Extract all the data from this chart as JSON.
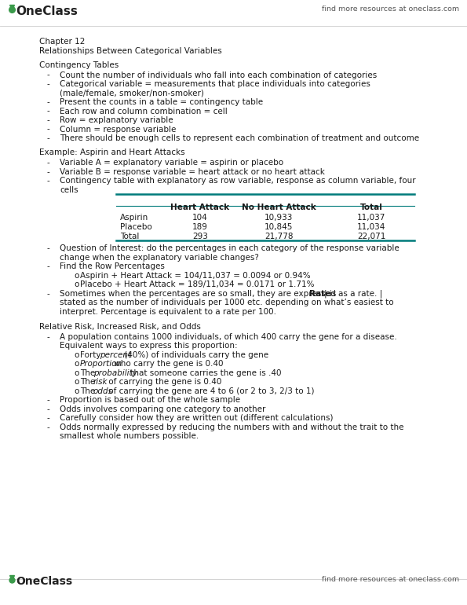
{
  "bg_color": "#ffffff",
  "logo_color": "#3a9a4a",
  "header_right": "find more resources at oneclass.com",
  "footer_right": "find more resources at oneclass.com",
  "chapter_title": "Chapter 12",
  "chapter_subtitle": "Relationships Between Categorical Variables",
  "section1_title": "Contingency Tables",
  "section1_bullets": [
    "Count the number of individuals who fall into each combination of categories",
    "Categorical variable = measurements that place individuals into categories\n(male/female, smoker/non-smoker)",
    "Present the counts in a table = contingency table",
    "Each row and column combination = cell",
    "Row = explanatory variable",
    "Column = response variable",
    "There should be enough cells to represent each combination of treatment and outcome"
  ],
  "section2_title": "Example: Aspirin and Heart Attacks",
  "section2_bullets": [
    "Variable A = explanatory variable = aspirin or placebo",
    "Variable B = response variable = heart attack or no heart attack",
    "Contingency table with explanatory as row variable, response as column variable, four\ncells"
  ],
  "table_headers": [
    "",
    "Heart Attack",
    "No Heart Attack",
    "Total"
  ],
  "table_rows": [
    [
      "Aspirin",
      "104",
      "10,933",
      "11,037"
    ],
    [
      "Placebo",
      "189",
      "10,845",
      "11,034"
    ],
    [
      "Total",
      "293",
      "21,778",
      "22,071"
    ]
  ],
  "section2_cont_bullets": [
    [
      "normal",
      "Question of Interest: do the percentages in each category of the response variable\nchange when the explanatory variable changes?"
    ],
    [
      "normal",
      "Find the Row Percentages"
    ],
    [
      "normal",
      "Sometimes when the percentages are so small, they are expressed as a rate. |Rate| is\nstated as the number of individuals per 1000 etc. depending on what’s easiest to\ninterpret. Percentage is equivalent to a rate per 100."
    ]
  ],
  "sub_bullets2": [
    "Aspirin + Heart Attack = 104/11,037 = 0.0094 or 0.94%",
    "Placebo + Heart Attack = 189/11,034 = 0.0171 or 1.71%"
  ],
  "section3_title": "Relative Risk, Increased Risk, and Odds",
  "section3_bullet0": "A population contains 1000 individuals, of which 400 carry the gene for a disease.\nEquivalent ways to express this proportion:",
  "sub_bullets3": [
    [
      "Forty ",
      "percent",
      " (40%) of individuals carry the gene"
    ],
    [
      "",
      "Proportion",
      " who carry the gene is 0.40"
    ],
    [
      "The ",
      "probability",
      " that someone carries the gene is .40"
    ],
    [
      "The ",
      "risk",
      " of carrying the gene is 0.40"
    ],
    [
      "The ",
      "odds",
      " of carrying the gene are 4 to 6 (or 2 to 3, 2/3 to 1)"
    ]
  ],
  "section3_bullets_rest": [
    "Proportion is based out of the whole sample",
    "Odds involves comparing one category to another",
    "Carefully consider how they are written out (different calculations)",
    "Odds normally expressed by reducing the numbers with and without the trait to the\nsmallest whole numbers possible."
  ],
  "teal_color": "#007b7b",
  "text_color": "#1a1a1a",
  "small_text_color": "#555555"
}
